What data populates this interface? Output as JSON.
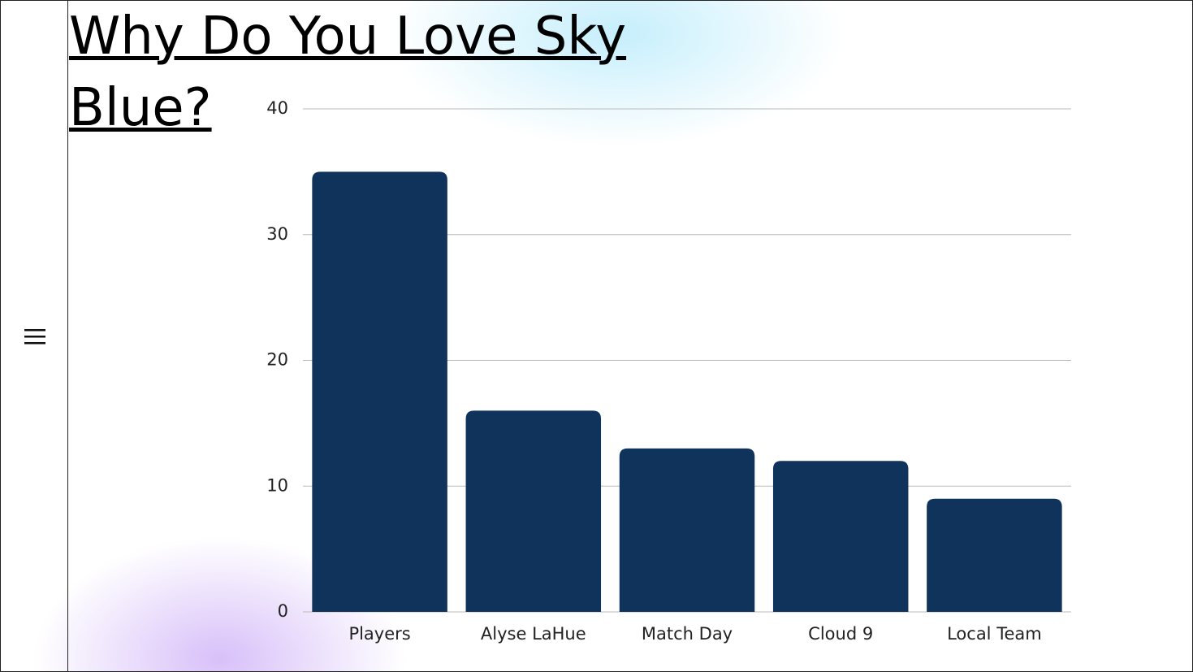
{
  "chart_data": {
    "type": "bar",
    "title": "Why Do You Love Sky Blue?",
    "categories": [
      "Players",
      "Alyse LaHue",
      "Match Day",
      "Cloud 9",
      "Local Team"
    ],
    "values": [
      35,
      16,
      13,
      12,
      9
    ],
    "color": "#10335c",
    "ylim": [
      0,
      40
    ],
    "yticks": [
      0,
      10,
      20,
      30,
      40
    ],
    "grid": true
  }
}
